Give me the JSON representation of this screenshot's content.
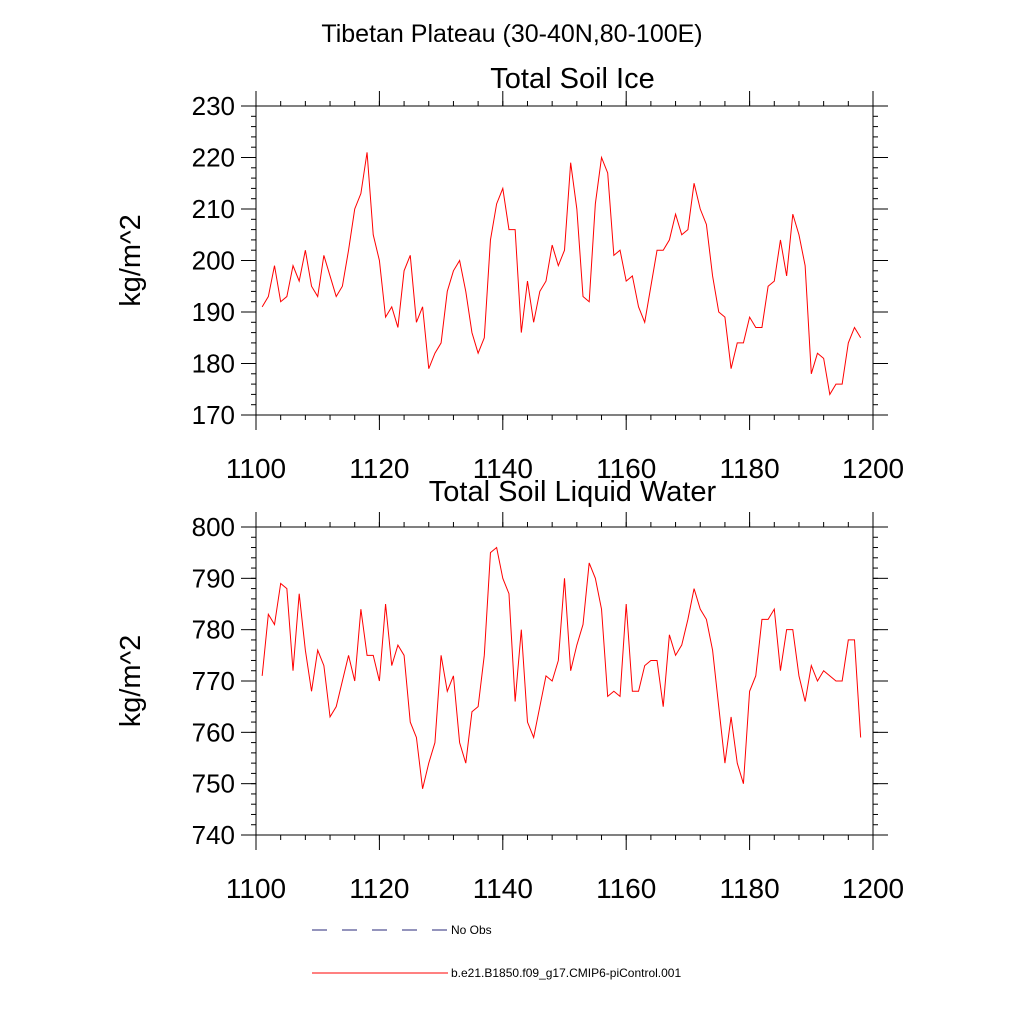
{
  "suptitle": "Tibetan Plateau (30-40N,80-100E)",
  "colors": {
    "model": "#ff0000",
    "obs": "#2a2a7a",
    "axis": "#000000"
  },
  "legend": [
    {
      "label": "No Obs",
      "style": "dashed",
      "color": "#2a2a7a"
    },
    {
      "label": "b.e21.B1850.f09_g17.CMIP6-piControl.001",
      "style": "solid",
      "color": "#ff0000"
    }
  ],
  "chart_data": [
    {
      "type": "line",
      "title": "Total Soil Ice",
      "xlabel": "",
      "ylabel": "kg/m^2",
      "xlim": [
        1100,
        1200
      ],
      "ylim": [
        170,
        230
      ],
      "x_ticks": [
        1100,
        1120,
        1140,
        1160,
        1180,
        1200
      ],
      "y_ticks": [
        170,
        180,
        190,
        200,
        210,
        220,
        230
      ],
      "x_start": 1101,
      "series": [
        {
          "name": "b.e21.B1850.f09_g17.CMIP6-piControl.001",
          "color": "#ff0000",
          "values": [
            191,
            193,
            199,
            192,
            193,
            199,
            196,
            202,
            195,
            193,
            201,
            197,
            193,
            195,
            202,
            210,
            213,
            221,
            205,
            200,
            189,
            191,
            187,
            198,
            201,
            188,
            191,
            179,
            182,
            184,
            194,
            198,
            200,
            194,
            186,
            182,
            185,
            204,
            211,
            214,
            206,
            206,
            186,
            196,
            188,
            194,
            196,
            203,
            199,
            202,
            219,
            210,
            193,
            192,
            211,
            220,
            217,
            201,
            202,
            196,
            197,
            191,
            188,
            195,
            202,
            202,
            204,
            209,
            205,
            206,
            215,
            210,
            207,
            197,
            190,
            189,
            179,
            184,
            184,
            189,
            187,
            187,
            195,
            196,
            204,
            197,
            209,
            205,
            199,
            178,
            182,
            181,
            174,
            176,
            176,
            184,
            187,
            185
          ]
        }
      ]
    },
    {
      "type": "line",
      "title": "Total Soil Liquid Water",
      "xlabel": "",
      "ylabel": "kg/m^2",
      "xlim": [
        1100,
        1200
      ],
      "ylim": [
        740,
        800
      ],
      "x_ticks": [
        1100,
        1120,
        1140,
        1160,
        1180,
        1200
      ],
      "y_ticks": [
        740,
        750,
        760,
        770,
        780,
        790,
        800
      ],
      "x_start": 1101,
      "series": [
        {
          "name": "b.e21.B1850.f09_g17.CMIP6-piControl.001",
          "color": "#ff0000",
          "values": [
            771,
            783,
            781,
            789,
            788,
            772,
            787,
            776,
            768,
            776,
            773,
            763,
            765,
            770,
            775,
            770,
            784,
            775,
            775,
            770,
            785,
            773,
            777,
            775,
            762,
            759,
            749,
            754,
            758,
            775,
            768,
            771,
            758,
            754,
            764,
            765,
            775,
            795,
            796,
            790,
            787,
            766,
            780,
            762,
            759,
            765,
            771,
            770,
            774,
            790,
            772,
            777,
            781,
            793,
            790,
            784,
            767,
            768,
            767,
            785,
            768,
            768,
            773,
            774,
            774,
            765,
            779,
            775,
            777,
            782,
            788,
            784,
            782,
            776,
            765,
            754,
            763,
            754,
            750,
            768,
            771,
            782,
            782,
            784,
            772,
            780,
            780,
            771,
            766,
            773,
            770,
            772,
            771,
            770,
            770,
            778,
            778,
            759
          ]
        }
      ]
    }
  ]
}
